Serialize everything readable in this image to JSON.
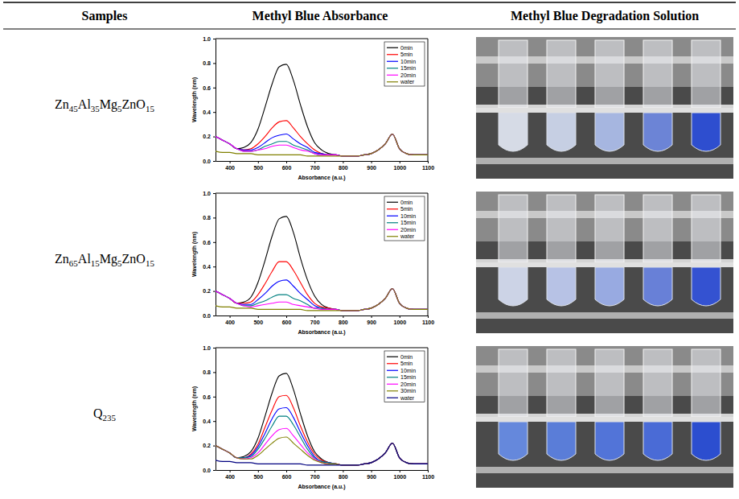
{
  "table": {
    "header": [
      "Samples",
      "Methyl Blue Absorbance",
      "Methyl Blue Degradation Solution"
    ],
    "rows": [
      {
        "sample": "Zn45Al35Mg5ZnO15"
      },
      {
        "sample": "Zn65Al15Mg5ZnO15"
      },
      {
        "sample": "Q235"
      }
    ]
  },
  "chart_data": [
    {
      "type": "line",
      "x_label": "Absorbance (a.u.)",
      "y_label": "Wavelength (nm)",
      "xlim": [
        350,
        1100
      ],
      "xticks": [
        400,
        500,
        600,
        700,
        800,
        900,
        1000,
        1100
      ],
      "ylim": [
        0,
        1.0
      ],
      "yticks": [
        {
          "value": 0,
          "label": "0.0"
        },
        {
          "value": 0.2,
          "label": "0.2"
        },
        {
          "value": 0.4,
          "label": "0.4"
        },
        {
          "value": 0.6,
          "label": "0.6"
        },
        {
          "value": 0.8,
          "label": "0.8"
        },
        {
          "value": 1.0,
          "label": "1.0"
        }
      ],
      "legend": "top-right",
      "x": [
        350,
        375,
        400,
        425,
        450,
        475,
        500,
        525,
        550,
        575,
        600,
        625,
        650,
        675,
        700,
        725,
        750,
        775,
        800,
        825,
        850,
        875,
        900,
        925,
        950,
        975,
        1000,
        1025,
        1050,
        1075,
        1100
      ],
      "series": [
        {
          "name": "0min",
          "color": "#000000",
          "values": [
            0.2,
            0.17,
            0.14,
            0.1,
            0.11,
            0.15,
            0.26,
            0.44,
            0.63,
            0.77,
            0.79,
            0.66,
            0.46,
            0.28,
            0.15,
            0.09,
            0.06,
            0.05,
            0.04,
            0.04,
            0.04,
            0.05,
            0.06,
            0.09,
            0.14,
            0.22,
            0.1,
            0.06,
            0.05,
            0.05,
            0.05
          ]
        },
        {
          "name": "5min",
          "color": "#ff0000",
          "values": [
            0.2,
            0.17,
            0.14,
            0.1,
            0.09,
            0.1,
            0.14,
            0.2,
            0.27,
            0.32,
            0.33,
            0.27,
            0.2,
            0.14,
            0.09,
            0.06,
            0.05,
            0.05,
            0.04,
            0.04,
            0.04,
            0.05,
            0.06,
            0.09,
            0.14,
            0.22,
            0.1,
            0.06,
            0.05,
            0.05,
            0.05
          ]
        },
        {
          "name": "10min",
          "color": "#0000ff",
          "values": [
            0.2,
            0.17,
            0.14,
            0.1,
            0.09,
            0.09,
            0.11,
            0.15,
            0.19,
            0.21,
            0.22,
            0.18,
            0.14,
            0.11,
            0.07,
            0.06,
            0.05,
            0.05,
            0.04,
            0.04,
            0.04,
            0.05,
            0.06,
            0.09,
            0.14,
            0.22,
            0.1,
            0.06,
            0.05,
            0.05,
            0.05
          ]
        },
        {
          "name": "15min",
          "color": "#008080",
          "values": [
            0.2,
            0.17,
            0.14,
            0.1,
            0.08,
            0.08,
            0.09,
            0.12,
            0.14,
            0.16,
            0.16,
            0.13,
            0.11,
            0.09,
            0.06,
            0.05,
            0.05,
            0.05,
            0.04,
            0.04,
            0.04,
            0.05,
            0.06,
            0.09,
            0.14,
            0.22,
            0.1,
            0.06,
            0.05,
            0.05,
            0.05
          ]
        },
        {
          "name": "20min",
          "color": "#ff00ff",
          "values": [
            0.2,
            0.17,
            0.14,
            0.1,
            0.08,
            0.08,
            0.09,
            0.1,
            0.12,
            0.13,
            0.13,
            0.11,
            0.09,
            0.08,
            0.06,
            0.05,
            0.05,
            0.05,
            0.04,
            0.04,
            0.04,
            0.05,
            0.06,
            0.09,
            0.14,
            0.22,
            0.1,
            0.06,
            0.05,
            0.05,
            0.05
          ]
        },
        {
          "name": "water",
          "color": "#808000",
          "values": [
            0.08,
            0.07,
            0.07,
            0.06,
            0.06,
            0.06,
            0.05,
            0.05,
            0.05,
            0.05,
            0.05,
            0.05,
            0.05,
            0.04,
            0.04,
            0.04,
            0.04,
            0.04,
            0.04,
            0.04,
            0.04,
            0.05,
            0.06,
            0.09,
            0.14,
            0.22,
            0.1,
            0.06,
            0.05,
            0.05,
            0.05
          ]
        }
      ]
    },
    {
      "type": "line",
      "x_label": "Absorbance (a.u.)",
      "y_label": "Wavelength (nm)",
      "xlim": [
        350,
        1100
      ],
      "xticks": [
        400,
        500,
        600,
        700,
        800,
        900,
        1000,
        1100
      ],
      "ylim": [
        0,
        1.0
      ],
      "yticks": [
        {
          "value": 0,
          "label": "0.0"
        },
        {
          "value": 0.2,
          "label": "0.2"
        },
        {
          "value": 0.4,
          "label": "0.4"
        },
        {
          "value": 0.6,
          "label": "0.6"
        },
        {
          "value": 0.8,
          "label": "0.8"
        },
        {
          "value": 1.0,
          "label": "1.0"
        }
      ],
      "legend": "top-right",
      "x": [
        350,
        375,
        400,
        425,
        450,
        475,
        500,
        525,
        550,
        575,
        600,
        625,
        650,
        675,
        700,
        725,
        750,
        775,
        800,
        825,
        850,
        875,
        900,
        925,
        950,
        975,
        1000,
        1025,
        1050,
        1075,
        1100
      ],
      "series": [
        {
          "name": "0min",
          "color": "#000000",
          "values": [
            0.2,
            0.17,
            0.14,
            0.1,
            0.11,
            0.15,
            0.27,
            0.45,
            0.65,
            0.79,
            0.81,
            0.68,
            0.47,
            0.29,
            0.16,
            0.09,
            0.06,
            0.05,
            0.04,
            0.04,
            0.04,
            0.05,
            0.06,
            0.09,
            0.14,
            0.22,
            0.1,
            0.06,
            0.05,
            0.05,
            0.05
          ]
        },
        {
          "name": "5min",
          "color": "#ff0000",
          "values": [
            0.2,
            0.17,
            0.14,
            0.1,
            0.1,
            0.11,
            0.17,
            0.26,
            0.36,
            0.44,
            0.44,
            0.37,
            0.27,
            0.17,
            0.1,
            0.07,
            0.06,
            0.05,
            0.04,
            0.04,
            0.04,
            0.05,
            0.06,
            0.09,
            0.14,
            0.22,
            0.1,
            0.06,
            0.05,
            0.05,
            0.05
          ]
        },
        {
          "name": "10min",
          "color": "#0000ff",
          "values": [
            0.2,
            0.17,
            0.14,
            0.1,
            0.09,
            0.09,
            0.13,
            0.18,
            0.24,
            0.28,
            0.29,
            0.24,
            0.18,
            0.13,
            0.08,
            0.06,
            0.05,
            0.05,
            0.04,
            0.04,
            0.04,
            0.05,
            0.06,
            0.09,
            0.14,
            0.22,
            0.1,
            0.06,
            0.05,
            0.05,
            0.05
          ]
        },
        {
          "name": "15min",
          "color": "#008080",
          "values": [
            0.2,
            0.17,
            0.14,
            0.1,
            0.08,
            0.08,
            0.1,
            0.12,
            0.15,
            0.17,
            0.17,
            0.14,
            0.12,
            0.09,
            0.06,
            0.06,
            0.05,
            0.05,
            0.04,
            0.04,
            0.04,
            0.05,
            0.06,
            0.09,
            0.14,
            0.22,
            0.1,
            0.06,
            0.05,
            0.05,
            0.05
          ]
        },
        {
          "name": "20min",
          "color": "#ff00ff",
          "values": [
            0.2,
            0.17,
            0.14,
            0.1,
            0.08,
            0.07,
            0.08,
            0.09,
            0.1,
            0.11,
            0.11,
            0.09,
            0.08,
            0.07,
            0.06,
            0.05,
            0.05,
            0.05,
            0.04,
            0.04,
            0.04,
            0.05,
            0.06,
            0.09,
            0.14,
            0.22,
            0.1,
            0.06,
            0.05,
            0.05,
            0.05
          ]
        },
        {
          "name": "water",
          "color": "#808000",
          "values": [
            0.08,
            0.07,
            0.07,
            0.06,
            0.06,
            0.06,
            0.05,
            0.05,
            0.05,
            0.05,
            0.05,
            0.05,
            0.05,
            0.04,
            0.04,
            0.04,
            0.04,
            0.04,
            0.04,
            0.04,
            0.04,
            0.05,
            0.06,
            0.09,
            0.14,
            0.22,
            0.1,
            0.06,
            0.05,
            0.05,
            0.05
          ]
        }
      ]
    },
    {
      "type": "line",
      "x_label": "Absorbance (a.u.)",
      "y_label": "Wavelength (nm)",
      "xlim": [
        350,
        1100
      ],
      "xticks": [
        400,
        500,
        600,
        700,
        800,
        900,
        1000,
        1100
      ],
      "ylim": [
        0,
        1.0
      ],
      "yticks": [
        {
          "value": 0,
          "label": "0.0"
        },
        {
          "value": 0.2,
          "label": "0.2"
        },
        {
          "value": 0.4,
          "label": "0.4"
        },
        {
          "value": 0.6,
          "label": "0.6"
        },
        {
          "value": 0.8,
          "label": "0.8"
        },
        {
          "value": 1.0,
          "label": "1.0"
        }
      ],
      "legend": "top-right",
      "x": [
        350,
        375,
        400,
        425,
        450,
        475,
        500,
        525,
        550,
        575,
        600,
        625,
        650,
        675,
        700,
        725,
        750,
        775,
        800,
        825,
        850,
        875,
        900,
        925,
        950,
        975,
        1000,
        1025,
        1050,
        1075,
        1100
      ],
      "series": [
        {
          "name": "0min",
          "color": "#000000",
          "values": [
            0.2,
            0.17,
            0.14,
            0.1,
            0.11,
            0.15,
            0.26,
            0.44,
            0.63,
            0.77,
            0.79,
            0.66,
            0.46,
            0.28,
            0.15,
            0.09,
            0.06,
            0.05,
            0.04,
            0.04,
            0.04,
            0.05,
            0.06,
            0.09,
            0.14,
            0.22,
            0.1,
            0.06,
            0.05,
            0.05,
            0.05
          ]
        },
        {
          "name": "5min",
          "color": "#ff0000",
          "values": [
            0.2,
            0.17,
            0.14,
            0.1,
            0.1,
            0.13,
            0.21,
            0.35,
            0.49,
            0.6,
            0.61,
            0.51,
            0.36,
            0.23,
            0.13,
            0.08,
            0.06,
            0.05,
            0.04,
            0.04,
            0.04,
            0.05,
            0.06,
            0.09,
            0.14,
            0.22,
            0.1,
            0.06,
            0.05,
            0.05,
            0.05
          ]
        },
        {
          "name": "10min",
          "color": "#0000ff",
          "values": [
            0.2,
            0.17,
            0.14,
            0.1,
            0.1,
            0.12,
            0.19,
            0.3,
            0.42,
            0.5,
            0.51,
            0.43,
            0.31,
            0.2,
            0.11,
            0.07,
            0.06,
            0.05,
            0.04,
            0.04,
            0.04,
            0.05,
            0.06,
            0.09,
            0.14,
            0.22,
            0.1,
            0.06,
            0.05,
            0.05,
            0.05
          ]
        },
        {
          "name": "15min",
          "color": "#008080",
          "values": [
            0.2,
            0.17,
            0.14,
            0.1,
            0.1,
            0.11,
            0.17,
            0.26,
            0.36,
            0.44,
            0.44,
            0.37,
            0.27,
            0.17,
            0.1,
            0.07,
            0.06,
            0.05,
            0.04,
            0.04,
            0.04,
            0.05,
            0.06,
            0.09,
            0.14,
            0.22,
            0.1,
            0.06,
            0.05,
            0.05,
            0.05
          ]
        },
        {
          "name": "20min",
          "color": "#ff00ff",
          "values": [
            0.2,
            0.17,
            0.14,
            0.1,
            0.09,
            0.1,
            0.14,
            0.21,
            0.28,
            0.33,
            0.34,
            0.28,
            0.21,
            0.14,
            0.09,
            0.06,
            0.05,
            0.05,
            0.04,
            0.04,
            0.04,
            0.05,
            0.06,
            0.09,
            0.14,
            0.22,
            0.1,
            0.06,
            0.05,
            0.05,
            0.05
          ]
        },
        {
          "name": "30min",
          "color": "#808000",
          "values": [
            0.2,
            0.17,
            0.14,
            0.1,
            0.09,
            0.09,
            0.12,
            0.17,
            0.22,
            0.26,
            0.27,
            0.22,
            0.17,
            0.12,
            0.08,
            0.06,
            0.05,
            0.05,
            0.04,
            0.04,
            0.04,
            0.05,
            0.06,
            0.09,
            0.14,
            0.22,
            0.1,
            0.06,
            0.05,
            0.05,
            0.05
          ]
        },
        {
          "name": "water",
          "color": "#000080",
          "values": [
            0.08,
            0.07,
            0.07,
            0.06,
            0.06,
            0.06,
            0.05,
            0.05,
            0.05,
            0.05,
            0.05,
            0.05,
            0.05,
            0.04,
            0.04,
            0.04,
            0.04,
            0.04,
            0.04,
            0.04,
            0.04,
            0.05,
            0.06,
            0.09,
            0.14,
            0.22,
            0.1,
            0.06,
            0.05,
            0.05,
            0.05
          ]
        }
      ]
    }
  ]
}
